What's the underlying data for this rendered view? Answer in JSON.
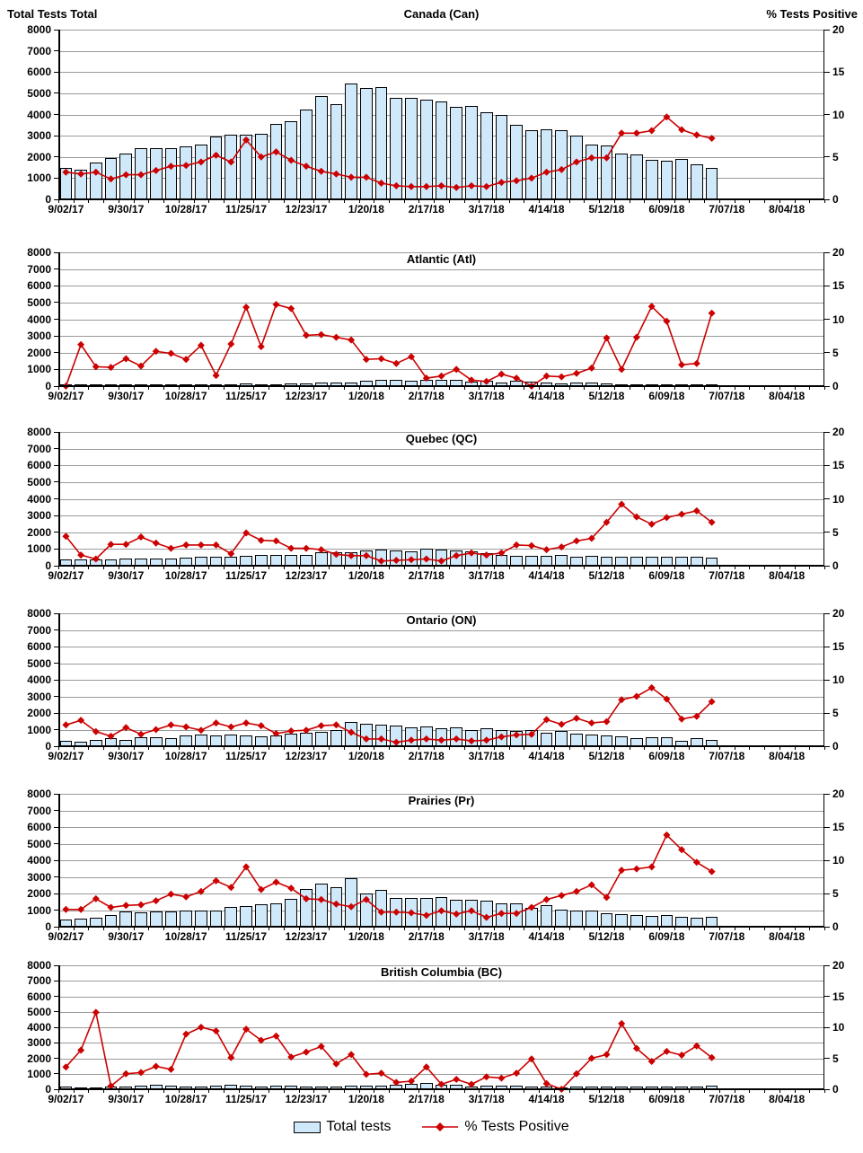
{
  "header": {
    "left_axis_title": "Total Tests Total",
    "right_axis_title": "% Tests Positive"
  },
  "legend": {
    "bars_label": "Total tests",
    "line_label": "% Tests Positive"
  },
  "colors": {
    "bar_fill": "#cfe8fa",
    "bar_border": "#000000",
    "line_color": "#cc0000",
    "grid_color": "#9a9a9a"
  },
  "chart_data": {
    "type": "multi-panel bar+line combo",
    "x_interval": "weekly",
    "x_tick_labels": [
      "9/02/17",
      "9/30/17",
      "10/28/17",
      "11/25/17",
      "12/23/17",
      "1/20/18",
      "2/17/18",
      "3/17/18",
      "4/14/18",
      "5/12/18",
      "6/09/18",
      "7/07/18",
      "8/04/18"
    ],
    "left_axis": {
      "label": "Total Tests Total",
      "min": 0,
      "max": 8000,
      "step": 1000,
      "tick_labels": [
        "0",
        "1000",
        "2000",
        "3000",
        "4000",
        "5000",
        "6000",
        "7000",
        "8000"
      ]
    },
    "right_axis": {
      "label": "% Tests Positive",
      "min": 0,
      "max": 20,
      "step": 5,
      "tick_labels": [
        "0",
        "5",
        "10",
        "15",
        "20"
      ]
    },
    "series_names": [
      "Total tests",
      "% Tests Positive"
    ],
    "bar_weeks": 44,
    "axis_weeks": 51,
    "grid": true,
    "panels": [
      {
        "title": "Canada (Can)",
        "total_tests": [
          1500,
          1400,
          1750,
          1950,
          2150,
          2400,
          2400,
          2400,
          2500,
          2600,
          2950,
          3050,
          3050,
          3100,
          3550,
          3700,
          4250,
          4850,
          4500,
          5450,
          5250,
          5300,
          4800,
          4800,
          4700,
          4600,
          4350,
          4400,
          4100,
          4000,
          3500,
          3250,
          3300,
          3250,
          3000,
          2600,
          2550,
          2150,
          2100,
          1850,
          1800,
          1900,
          1650,
          1500
        ],
        "pct_positive": [
          3.2,
          3.0,
          3.2,
          2.4,
          2.9,
          2.9,
          3.4,
          3.9,
          4.0,
          4.4,
          5.2,
          4.4,
          7.0,
          5.0,
          5.6,
          4.6,
          3.9,
          3.3,
          3.0,
          2.6,
          2.6,
          1.9,
          1.6,
          1.5,
          1.5,
          1.6,
          1.4,
          1.6,
          1.5,
          2.0,
          2.2,
          2.5,
          3.2,
          3.5,
          4.4,
          4.9,
          4.9,
          7.8,
          7.8,
          8.1,
          9.7,
          8.2,
          7.6,
          7.2
        ]
      },
      {
        "title": "Atlantic (Atl)",
        "total_tests": [
          30,
          50,
          60,
          60,
          60,
          60,
          80,
          80,
          100,
          80,
          80,
          120,
          150,
          120,
          120,
          150,
          180,
          200,
          200,
          200,
          300,
          350,
          350,
          300,
          350,
          350,
          350,
          250,
          300,
          200,
          300,
          250,
          200,
          150,
          200,
          200,
          150,
          120,
          120,
          120,
          120,
          120,
          120,
          100
        ],
        "pct_positive": [
          0,
          6.2,
          2.9,
          2.8,
          4.1,
          3.0,
          5.2,
          4.9,
          4.0,
          6.1,
          1.6,
          6.3,
          11.8,
          5.9,
          12.2,
          11.6,
          7.6,
          7.7,
          7.3,
          6.9,
          4.0,
          4.1,
          3.4,
          4.4,
          1.2,
          1.5,
          2.5,
          0.9,
          0.7,
          1.8,
          1.2,
          0.0,
          1.5,
          1.4,
          1.9,
          2.7,
          7.2,
          2.5,
          7.3,
          11.9,
          9.7,
          3.2,
          3.4,
          10.9
        ]
      },
      {
        "title": "Quebec (QC)",
        "total_tests": [
          400,
          350,
          350,
          400,
          450,
          450,
          450,
          450,
          500,
          550,
          550,
          550,
          600,
          650,
          650,
          650,
          650,
          800,
          800,
          800,
          900,
          950,
          900,
          850,
          1000,
          950,
          900,
          850,
          750,
          650,
          600,
          600,
          600,
          650,
          550,
          600,
          550,
          550,
          550,
          550,
          550,
          550,
          550,
          500
        ],
        "pct_positive": [
          4.4,
          1.6,
          1.0,
          3.2,
          3.2,
          4.3,
          3.4,
          2.6,
          3.1,
          3.1,
          3.1,
          1.8,
          4.9,
          3.8,
          3.7,
          2.6,
          2.6,
          2.4,
          1.7,
          1.5,
          1.5,
          0.7,
          0.8,
          0.9,
          1.0,
          0.7,
          1.5,
          1.9,
          1.6,
          1.9,
          3.1,
          3.0,
          2.4,
          2.8,
          3.7,
          4.1,
          6.5,
          9.2,
          7.3,
          6.2,
          7.2,
          7.7,
          8.2,
          6.5
        ]
      },
      {
        "title": "Ontario (ON)",
        "total_tests": [
          300,
          250,
          400,
          500,
          400,
          550,
          550,
          500,
          650,
          700,
          650,
          700,
          650,
          600,
          650,
          750,
          800,
          850,
          1000,
          1450,
          1350,
          1300,
          1250,
          1150,
          1200,
          1100,
          1150,
          950,
          1100,
          1000,
          900,
          950,
          800,
          900,
          750,
          700,
          650,
          600,
          500,
          550,
          550,
          350,
          500,
          400
        ],
        "pct_positive": [
          3.2,
          3.9,
          2.2,
          1.5,
          2.8,
          1.8,
          2.5,
          3.2,
          2.9,
          2.4,
          3.5,
          2.9,
          3.5,
          3.1,
          1.9,
          2.3,
          2.4,
          3.1,
          3.2,
          2.1,
          1.1,
          1.1,
          0.6,
          0.9,
          1.1,
          0.9,
          1.1,
          0.8,
          0.9,
          1.4,
          1.7,
          1.8,
          4.0,
          3.3,
          4.2,
          3.5,
          3.7,
          7.0,
          7.5,
          8.8,
          7.1,
          4.1,
          4.5,
          6.7
        ]
      },
      {
        "title": "Prairies (Pr)",
        "total_tests": [
          450,
          500,
          550,
          700,
          900,
          850,
          900,
          900,
          950,
          1000,
          1000,
          1200,
          1250,
          1350,
          1400,
          1700,
          2250,
          2600,
          2400,
          2900,
          2000,
          2200,
          1750,
          1750,
          1750,
          1800,
          1600,
          1600,
          1550,
          1400,
          1400,
          1150,
          1300,
          1050,
          950,
          1000,
          800,
          750,
          700,
          650,
          700,
          600,
          550,
          600
        ],
        "pct_positive": [
          2.6,
          2.6,
          4.2,
          2.9,
          3.2,
          3.3,
          3.9,
          4.9,
          4.5,
          5.3,
          6.9,
          5.9,
          9.0,
          5.6,
          6.7,
          5.8,
          4.2,
          4.1,
          3.4,
          3.0,
          4.1,
          2.2,
          2.2,
          2.1,
          1.7,
          2.4,
          1.9,
          2.4,
          1.4,
          2.0,
          2.0,
          2.9,
          4.1,
          4.7,
          5.3,
          6.3,
          4.4,
          8.5,
          8.7,
          9.0,
          13.8,
          11.6,
          9.7,
          8.3
        ]
      },
      {
        "title": "British Columbia (BC)",
        "total_tests": [
          150,
          100,
          100,
          150,
          200,
          250,
          300,
          250,
          200,
          200,
          250,
          300,
          250,
          200,
          250,
          250,
          200,
          150,
          200,
          250,
          250,
          250,
          300,
          350,
          400,
          300,
          300,
          150,
          250,
          250,
          250,
          200,
          150,
          100,
          200,
          150,
          150,
          150,
          150,
          200,
          150,
          200,
          150,
          250
        ],
        "pct_positive": [
          3.6,
          6.3,
          12.4,
          0.5,
          2.5,
          2.7,
          3.7,
          3.2,
          8.9,
          10.0,
          9.4,
          5.1,
          9.7,
          7.9,
          8.6,
          5.2,
          6.0,
          6.9,
          4.1,
          5.6,
          2.4,
          2.6,
          1.1,
          1.3,
          3.6,
          0.8,
          1.6,
          0.8,
          2.0,
          1.8,
          2.6,
          4.9,
          0.9,
          0.0,
          2.5,
          5.0,
          5.6,
          10.6,
          6.6,
          4.5,
          6.1,
          5.5,
          7.0,
          5.1
        ]
      }
    ]
  }
}
